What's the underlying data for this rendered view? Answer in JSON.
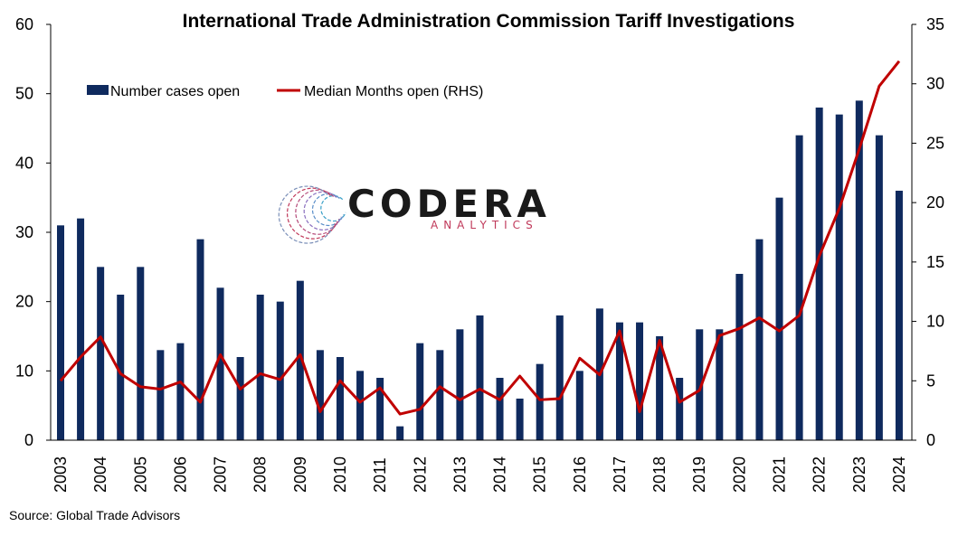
{
  "chart_data": {
    "type": "bar+line",
    "title": "International Trade Administration Commission Tariff Investigations",
    "source": "Source: Global Trade Advisors",
    "logo": {
      "name": "CODERA",
      "sub": "ANALYTICS"
    },
    "x_tick_labels": [
      "2003",
      "2004",
      "2005",
      "2006",
      "2007",
      "2008",
      "2009",
      "2010",
      "2011",
      "2012",
      "2013",
      "2014",
      "2015",
      "2016",
      "2017",
      "2018",
      "2019",
      "2020",
      "2021",
      "2022",
      "2023",
      "2024"
    ],
    "ylim_left": [
      0,
      60
    ],
    "yticks_left": [
      0,
      10,
      20,
      30,
      40,
      50,
      60
    ],
    "ylim_right": [
      0,
      35
    ],
    "yticks_right": [
      0,
      5,
      10,
      15,
      20,
      25,
      30,
      35
    ],
    "legend": {
      "placement": "top-left"
    },
    "grid": false,
    "colors": {
      "bars": "#0f2a5e",
      "line": "#c00000"
    },
    "series": [
      {
        "name": "Number cases open",
        "type": "bar",
        "axis": "left",
        "values": [
          31,
          32,
          25,
          21,
          25,
          13,
          14,
          29,
          22,
          12,
          21,
          20,
          23,
          13,
          12,
          10,
          9,
          2,
          14,
          13,
          16,
          18,
          9,
          6,
          11,
          18,
          10,
          19,
          17,
          17,
          15,
          9,
          16,
          16,
          24,
          29,
          35,
          44,
          48,
          47,
          49,
          44,
          36
        ]
      },
      {
        "name": "Median Months open (RHS)",
        "type": "line",
        "axis": "right",
        "values": [
          5,
          7,
          8.7,
          5.6,
          4.5,
          4.3,
          4.9,
          3.2,
          7.2,
          4.3,
          5.6,
          5.1,
          7.2,
          2.4,
          5,
          3.2,
          4.4,
          2.2,
          2.6,
          4.5,
          3.4,
          4.3,
          3.4,
          5.4,
          3.4,
          3.5,
          6.9,
          5.5,
          9.2,
          2.4,
          8.4,
          3.2,
          4.2,
          8.8,
          9.4,
          10.3,
          9.2,
          10.5,
          15.5,
          19.5,
          24.5,
          29.8,
          31.9
        ]
      }
    ]
  }
}
